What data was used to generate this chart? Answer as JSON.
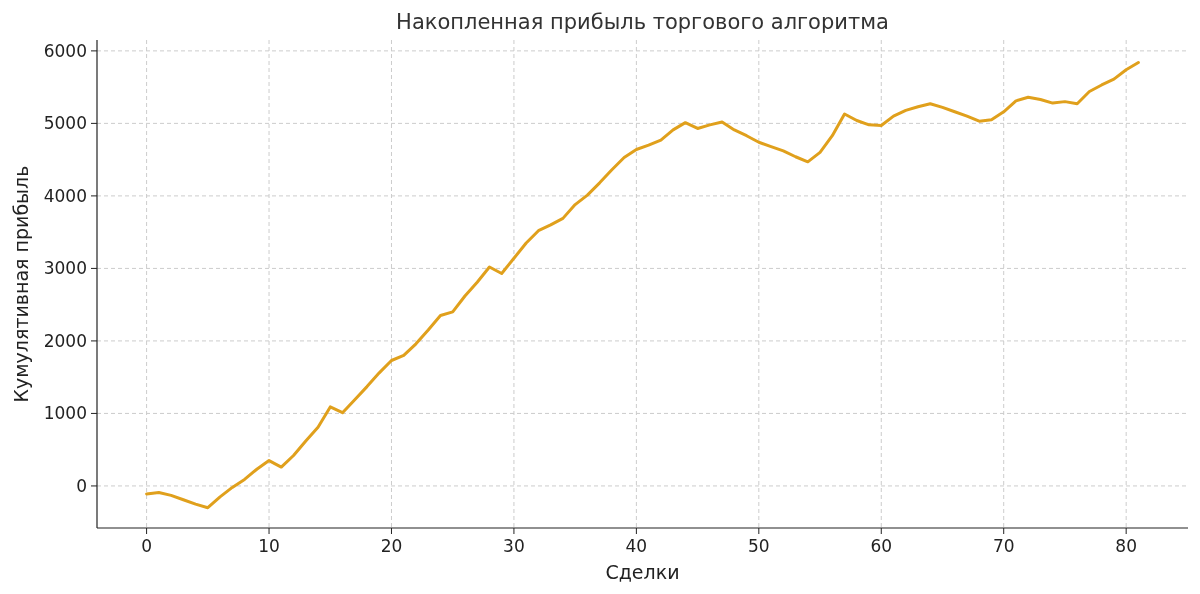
{
  "chart_data": {
    "type": "line",
    "title": "Накопленная прибыль торгового алгоритма",
    "xlabel": "Сделки",
    "ylabel": "Кумулятивная прибыль",
    "x": [
      0,
      1,
      2,
      3,
      4,
      5,
      6,
      7,
      8,
      9,
      10,
      11,
      12,
      13,
      14,
      15,
      16,
      17,
      18,
      19,
      20,
      21,
      22,
      23,
      24,
      25,
      26,
      27,
      28,
      29,
      30,
      31,
      32,
      33,
      34,
      35,
      36,
      37,
      38,
      39,
      40,
      41,
      42,
      43,
      44,
      45,
      46,
      47,
      48,
      49,
      50,
      51,
      52,
      53,
      54,
      55,
      56,
      57,
      58,
      59,
      60,
      61,
      62,
      63,
      64,
      65,
      66,
      67,
      68,
      69,
      70,
      71,
      72,
      73,
      74,
      75,
      76,
      77,
      78,
      79,
      80,
      81
    ],
    "series": [
      {
        "color": "#e0a01c",
        "values": [
          -110,
          -90,
          -130,
          -190,
          -250,
          -300,
          -150,
          -20,
          90,
          230,
          350,
          260,
          420,
          620,
          810,
          1090,
          1010,
          1190,
          1370,
          1560,
          1730,
          1800,
          1960,
          2150,
          2350,
          2400,
          2620,
          2810,
          3020,
          2930,
          3140,
          3350,
          3520,
          3600,
          3690,
          3880,
          4010,
          4180,
          4360,
          4530,
          4640,
          4700,
          4770,
          4910,
          5010,
          4930,
          4980,
          5020,
          4910,
          4830,
          4740,
          4680,
          4620,
          4540,
          4470,
          4600,
          4830,
          5130,
          5040,
          4980,
          4970,
          5100,
          5180,
          5230,
          5270,
          5220,
          5160,
          5100,
          5030,
          5050,
          5160,
          5310,
          5360,
          5330,
          5280,
          5300,
          5270,
          5440,
          5530,
          5610,
          5740,
          5840
        ]
      }
    ],
    "xlim": [
      -4.05,
      85.05
    ],
    "ylim": [
      -580,
      6150
    ],
    "xticks": [
      0,
      10,
      20,
      30,
      40,
      50,
      60,
      70,
      80
    ],
    "yticks": [
      0,
      1000,
      2000,
      3000,
      4000,
      5000,
      6000
    ],
    "grid": true,
    "marker": "none",
    "line_style": "solid"
  }
}
